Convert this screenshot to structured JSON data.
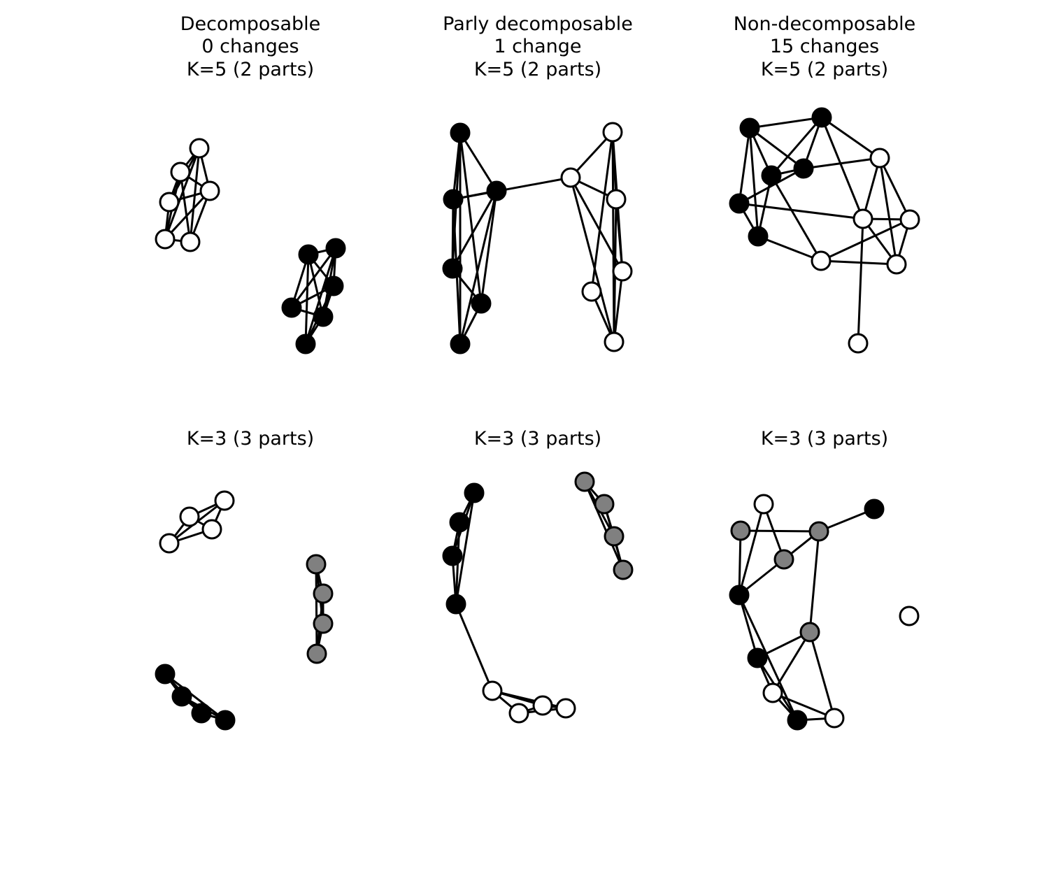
{
  "colors": {
    "black": "#000000",
    "white": "#ffffff",
    "gray": "#808080"
  },
  "panels": [
    {
      "title_lines": [
        "Decomposable",
        "0 changes",
        "K=5 (2 parts)"
      ],
      "nodes": [
        {
          "c": "white"
        },
        {
          "c": "white"
        },
        {
          "c": "white"
        },
        {
          "c": "white"
        },
        {
          "c": "white"
        },
        {
          "c": "white"
        },
        {
          "c": "black"
        },
        {
          "c": "black"
        },
        {
          "c": "black"
        },
        {
          "c": "black"
        },
        {
          "c": "black"
        },
        {
          "c": "black"
        }
      ],
      "edges": [
        [
          0,
          1
        ],
        [
          0,
          2
        ],
        [
          0,
          3
        ],
        [
          0,
          4
        ],
        [
          0,
          5
        ],
        [
          1,
          2
        ],
        [
          1,
          3
        ],
        [
          1,
          4
        ],
        [
          1,
          5
        ],
        [
          2,
          3
        ],
        [
          2,
          4
        ],
        [
          2,
          5
        ],
        [
          3,
          4
        ],
        [
          4,
          5
        ],
        [
          6,
          7
        ],
        [
          6,
          8
        ],
        [
          6,
          9
        ],
        [
          6,
          10
        ],
        [
          6,
          11
        ],
        [
          7,
          8
        ],
        [
          7,
          9
        ],
        [
          7,
          10
        ],
        [
          7,
          11
        ],
        [
          8,
          9
        ],
        [
          8,
          10
        ],
        [
          8,
          11
        ],
        [
          9,
          10
        ],
        [
          10,
          11
        ]
      ]
    },
    {
      "title_lines": [
        "Parly decomposable",
        "1 change",
        "K=5 (2 parts)"
      ],
      "nodes": [
        {
          "c": "black"
        },
        {
          "c": "black"
        },
        {
          "c": "black"
        },
        {
          "c": "black"
        },
        {
          "c": "black"
        },
        {
          "c": "black"
        },
        {
          "c": "white"
        },
        {
          "c": "white"
        },
        {
          "c": "white"
        },
        {
          "c": "white"
        },
        {
          "c": "white"
        },
        {
          "c": "white"
        }
      ],
      "edges": [
        [
          0,
          1
        ],
        [
          0,
          2
        ],
        [
          0,
          3
        ],
        [
          0,
          4
        ],
        [
          0,
          5
        ],
        [
          1,
          2
        ],
        [
          1,
          3
        ],
        [
          1,
          5
        ],
        [
          2,
          3
        ],
        [
          2,
          4
        ],
        [
          2,
          5
        ],
        [
          3,
          4
        ],
        [
          4,
          5
        ],
        [
          1,
          6
        ],
        [
          6,
          7
        ],
        [
          6,
          8
        ],
        [
          6,
          9
        ],
        [
          6,
          11
        ],
        [
          7,
          8
        ],
        [
          7,
          9
        ],
        [
          7,
          10
        ],
        [
          7,
          11
        ],
        [
          8,
          9
        ],
        [
          8,
          11
        ],
        [
          9,
          11
        ],
        [
          10,
          11
        ]
      ]
    },
    {
      "title_lines": [
        "Non-decomposable",
        "15 changes",
        "K=5 (2 parts)"
      ],
      "nodes": [
        {
          "c": "black"
        },
        {
          "c": "black"
        },
        {
          "c": "black"
        },
        {
          "c": "black"
        },
        {
          "c": "black"
        },
        {
          "c": "black"
        },
        {
          "c": "white"
        },
        {
          "c": "white"
        },
        {
          "c": "white"
        },
        {
          "c": "white"
        },
        {
          "c": "white"
        },
        {
          "c": "white"
        }
      ],
      "edges": [
        [
          0,
          1
        ],
        [
          0,
          2
        ],
        [
          0,
          4
        ],
        [
          0,
          5
        ],
        [
          0,
          3
        ],
        [
          1,
          2
        ],
        [
          1,
          3
        ],
        [
          1,
          6
        ],
        [
          1,
          7
        ],
        [
          2,
          4
        ],
        [
          2,
          3
        ],
        [
          2,
          6
        ],
        [
          3,
          5
        ],
        [
          3,
          8
        ],
        [
          4,
          5
        ],
        [
          4,
          7
        ],
        [
          5,
          8
        ],
        [
          6,
          7
        ],
        [
          6,
          9
        ],
        [
          6,
          10
        ],
        [
          7,
          9
        ],
        [
          7,
          11
        ],
        [
          9,
          10
        ],
        [
          8,
          10
        ],
        [
          8,
          9
        ],
        [
          10,
          7
        ]
      ]
    },
    {
      "title_lines": [
        "K=3 (3 parts)"
      ],
      "nodes": [
        {
          "c": "white"
        },
        {
          "c": "white"
        },
        {
          "c": "white"
        },
        {
          "c": "white"
        },
        {
          "c": "gray"
        },
        {
          "c": "gray"
        },
        {
          "c": "gray"
        },
        {
          "c": "gray"
        },
        {
          "c": "black"
        },
        {
          "c": "black"
        },
        {
          "c": "black"
        },
        {
          "c": "black"
        }
      ],
      "edges": [
        [
          0,
          1
        ],
        [
          0,
          2
        ],
        [
          0,
          3
        ],
        [
          1,
          2
        ],
        [
          1,
          3
        ],
        [
          2,
          3
        ],
        [
          4,
          5
        ],
        [
          4,
          6
        ],
        [
          4,
          7
        ],
        [
          5,
          6
        ],
        [
          5,
          7
        ],
        [
          6,
          7
        ],
        [
          8,
          9
        ],
        [
          8,
          10
        ],
        [
          8,
          11
        ],
        [
          9,
          10
        ],
        [
          9,
          11
        ],
        [
          10,
          11
        ]
      ]
    },
    {
      "title_lines": [
        "K=3 (3 parts)"
      ],
      "nodes": [
        {
          "c": "black"
        },
        {
          "c": "black"
        },
        {
          "c": "black"
        },
        {
          "c": "black"
        },
        {
          "c": "gray"
        },
        {
          "c": "gray"
        },
        {
          "c": "gray"
        },
        {
          "c": "gray"
        },
        {
          "c": "white"
        },
        {
          "c": "white"
        },
        {
          "c": "white"
        },
        {
          "c": "white"
        }
      ],
      "edges": [
        [
          0,
          1
        ],
        [
          0,
          2
        ],
        [
          0,
          3
        ],
        [
          1,
          2
        ],
        [
          1,
          3
        ],
        [
          2,
          3
        ],
        [
          4,
          5
        ],
        [
          4,
          6
        ],
        [
          4,
          7
        ],
        [
          5,
          6
        ],
        [
          5,
          7
        ],
        [
          6,
          7
        ],
        [
          8,
          9
        ],
        [
          8,
          10
        ],
        [
          8,
          11
        ],
        [
          9,
          10
        ],
        [
          9,
          11
        ],
        [
          10,
          11
        ],
        [
          3,
          8
        ]
      ]
    },
    {
      "title_lines": [
        "K=3 (3 parts)"
      ],
      "nodes": [
        {
          "c": "white"
        },
        {
          "c": "black"
        },
        {
          "c": "gray"
        },
        {
          "c": "gray"
        },
        {
          "c": "gray"
        },
        {
          "c": "black"
        },
        {
          "c": "gray"
        },
        {
          "c": "white"
        },
        {
          "c": "black"
        },
        {
          "c": "white"
        },
        {
          "c": "black"
        },
        {
          "c": "white"
        }
      ],
      "edges": [
        [
          0,
          4
        ],
        [
          0,
          5
        ],
        [
          1,
          3
        ],
        [
          2,
          3
        ],
        [
          2,
          5
        ],
        [
          3,
          4
        ],
        [
          3,
          6
        ],
        [
          4,
          5
        ],
        [
          5,
          8
        ],
        [
          5,
          10
        ],
        [
          6,
          8
        ],
        [
          6,
          9
        ],
        [
          6,
          11
        ],
        [
          8,
          9
        ],
        [
          9,
          10
        ],
        [
          9,
          11
        ],
        [
          10,
          11
        ],
        [
          8,
          10
        ]
      ]
    }
  ]
}
